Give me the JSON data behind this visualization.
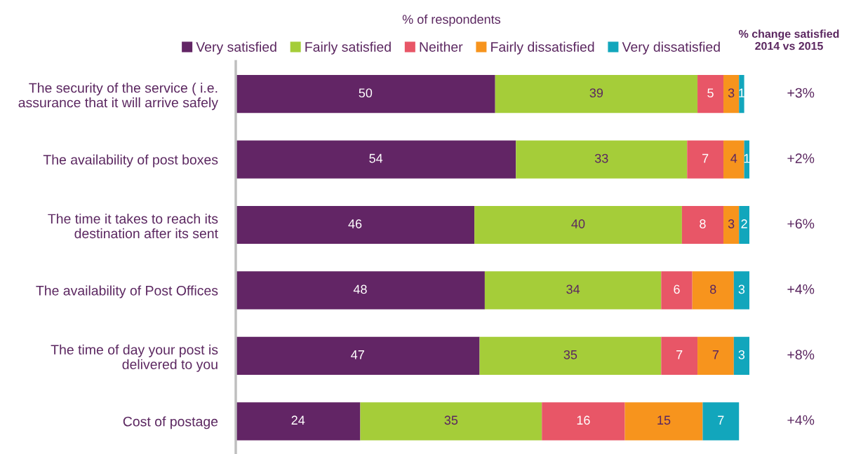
{
  "chart_data": {
    "type": "bar",
    "orientation": "horizontal",
    "stacked": true,
    "title": "% of respondents",
    "categories": [
      "The security of the service ( i.e.\nassurance that it will arrive safely",
      "The availability of post boxes",
      "The time it takes to reach its\ndestination after its sent",
      "The availability of Post Offices",
      "The time of day your post is\ndelivered to you",
      "Cost of postage"
    ],
    "series": [
      {
        "name": "Very satisfied",
        "color": "#622565",
        "values": [
          50,
          54,
          46,
          48,
          47,
          24
        ]
      },
      {
        "name": "Fairly satisfied",
        "color": "#a5cd39",
        "values": [
          39,
          33,
          40,
          34,
          35,
          35
        ]
      },
      {
        "name": "Neither",
        "color": "#e85667",
        "values": [
          5,
          7,
          8,
          6,
          7,
          16
        ]
      },
      {
        "name": "Fairly dissatisfied",
        "color": "#f7941d",
        "values": [
          3,
          4,
          3,
          8,
          7,
          15
        ]
      },
      {
        "name": "Very dissatisfied",
        "color": "#12a6bc",
        "values": [
          1,
          1,
          2,
          3,
          3,
          7
        ]
      }
    ],
    "data_labels": true,
    "legend": "top",
    "grid": false,
    "annotations": [
      "% change satisfied\n2014 vs 2015",
      "+3%",
      "+2%",
      "+6%",
      "+4%",
      "+8%",
      "+4%"
    ]
  }
}
